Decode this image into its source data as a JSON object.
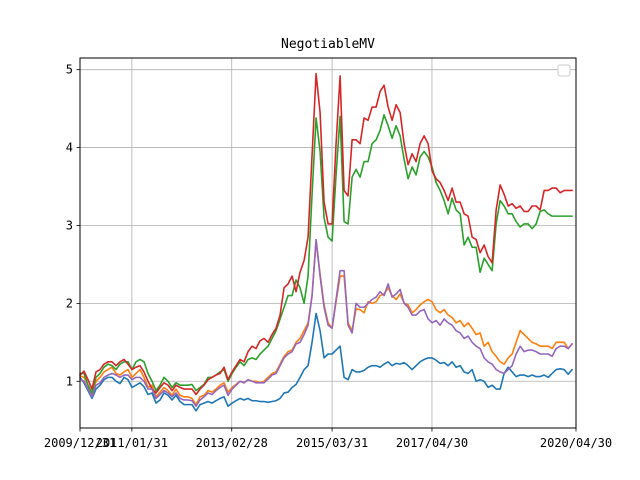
{
  "chart_data": {
    "type": "line",
    "title": "NegotiableMV",
    "xlabel": "",
    "ylabel": "",
    "x_tick_labels": [
      "2009/12/31",
      "2011/01/31",
      "2013/02/28",
      "2015/03/31",
      "2017/04/30",
      "2020/04/30"
    ],
    "x_tick_values": [
      2010.0,
      2011.08,
      2013.16,
      2015.25,
      2017.33,
      2020.33
    ],
    "xlim": [
      2010.0,
      2020.33
    ],
    "y_ticks": [
      1,
      2,
      3,
      4,
      5
    ],
    "ylim": [
      0.4,
      5.15
    ],
    "grid": true,
    "legend": {
      "placement": "top-right",
      "entries": []
    },
    "x": [
      2010.0,
      2010.083,
      2010.167,
      2010.25,
      2010.333,
      2010.417,
      2010.5,
      2010.583,
      2010.667,
      2010.75,
      2010.833,
      2010.917,
      2011.0,
      2011.083,
      2011.167,
      2011.25,
      2011.333,
      2011.417,
      2011.5,
      2011.583,
      2011.667,
      2011.75,
      2011.833,
      2011.917,
      2012.0,
      2012.083,
      2012.167,
      2012.25,
      2012.333,
      2012.417,
      2012.5,
      2012.583,
      2012.667,
      2012.75,
      2012.833,
      2012.917,
      2013.0,
      2013.083,
      2013.167,
      2013.25,
      2013.333,
      2013.417,
      2013.5,
      2013.583,
      2013.667,
      2013.75,
      2013.833,
      2013.917,
      2014.0,
      2014.083,
      2014.167,
      2014.25,
      2014.333,
      2014.417,
      2014.5,
      2014.583,
      2014.667,
      2014.75,
      2014.833,
      2014.917,
      2015.0,
      2015.083,
      2015.167,
      2015.25,
      2015.333,
      2015.417,
      2015.5,
      2015.583,
      2015.667,
      2015.75,
      2015.833,
      2015.917,
      2016.0,
      2016.083,
      2016.167,
      2016.25,
      2016.333,
      2016.417,
      2016.5,
      2016.583,
      2016.667,
      2016.75,
      2016.833,
      2016.917,
      2017.0,
      2017.083,
      2017.167,
      2017.25,
      2017.333,
      2017.417,
      2017.5,
      2017.583,
      2017.667,
      2017.75,
      2017.833,
      2017.917,
      2018.0,
      2018.083,
      2018.167,
      2018.25,
      2018.333,
      2018.417,
      2018.5,
      2018.583,
      2018.667,
      2018.75,
      2018.833,
      2018.917,
      2019.0,
      2019.083,
      2019.167,
      2019.25,
      2019.333,
      2019.417,
      2019.5,
      2019.583,
      2019.667,
      2019.75,
      2019.833,
      2019.917,
      2020.0,
      2020.083,
      2020.167,
      2020.25
    ],
    "series": [
      {
        "color": "#1f77b4",
        "values": [
          1.05,
          0.98,
          0.88,
          0.78,
          0.9,
          0.95,
          1.02,
          1.05,
          1.05,
          1.0,
          0.97,
          1.05,
          1.02,
          0.92,
          0.95,
          0.98,
          0.93,
          0.83,
          0.85,
          0.72,
          0.76,
          0.85,
          0.82,
          0.76,
          0.82,
          0.74,
          0.7,
          0.7,
          0.7,
          0.62,
          0.7,
          0.72,
          0.74,
          0.72,
          0.75,
          0.78,
          0.8,
          0.68,
          0.72,
          0.75,
          0.78,
          0.76,
          0.78,
          0.75,
          0.75,
          0.74,
          0.74,
          0.73,
          0.74,
          0.75,
          0.78,
          0.85,
          0.86,
          0.92,
          0.96,
          1.05,
          1.15,
          1.2,
          1.5,
          1.87,
          1.65,
          1.3,
          1.35,
          1.35,
          1.4,
          1.45,
          1.05,
          1.02,
          1.15,
          1.12,
          1.12,
          1.14,
          1.18,
          1.2,
          1.2,
          1.18,
          1.22,
          1.25,
          1.2,
          1.23,
          1.22,
          1.24,
          1.2,
          1.15,
          1.2,
          1.25,
          1.28,
          1.3,
          1.3,
          1.27,
          1.23,
          1.24,
          1.2,
          1.25,
          1.18,
          1.2,
          1.12,
          1.1,
          1.15,
          1.0,
          1.02,
          1.0,
          0.92,
          0.95,
          0.9,
          0.9,
          1.1,
          1.18,
          1.12,
          1.06,
          1.08,
          1.08,
          1.06,
          1.08,
          1.06,
          1.06,
          1.08,
          1.05,
          1.1,
          1.15,
          1.16,
          1.15,
          1.09,
          1.15
        ]
      },
      {
        "color": "#ff7f0e",
        "values": [
          1.07,
          1.05,
          0.95,
          0.82,
          1.0,
          1.05,
          1.12,
          1.15,
          1.18,
          1.1,
          1.08,
          1.12,
          1.15,
          1.05,
          1.1,
          1.15,
          1.05,
          0.92,
          0.95,
          0.8,
          0.86,
          0.92,
          0.88,
          0.82,
          0.9,
          0.82,
          0.8,
          0.8,
          0.78,
          0.7,
          0.8,
          0.82,
          0.88,
          0.86,
          0.9,
          0.95,
          0.98,
          0.86,
          0.92,
          0.96,
          1.0,
          0.98,
          1.02,
          1.0,
          1.0,
          0.98,
          1.0,
          1.05,
          1.1,
          1.12,
          1.22,
          1.32,
          1.38,
          1.4,
          1.5,
          1.55,
          1.65,
          1.75,
          2.1,
          2.8,
          2.38,
          1.98,
          1.75,
          1.68,
          2.02,
          2.35,
          2.35,
          1.75,
          1.65,
          1.93,
          1.92,
          1.88,
          2.02,
          2.0,
          2.02,
          2.1,
          2.12,
          2.2,
          2.1,
          2.05,
          2.12,
          2.0,
          1.98,
          1.88,
          1.92,
          1.98,
          2.02,
          2.05,
          2.02,
          1.92,
          1.88,
          1.92,
          1.85,
          1.82,
          1.75,
          1.78,
          1.7,
          1.75,
          1.68,
          1.6,
          1.62,
          1.45,
          1.5,
          1.38,
          1.32,
          1.25,
          1.22,
          1.3,
          1.35,
          1.5,
          1.65,
          1.6,
          1.55,
          1.5,
          1.48,
          1.45,
          1.45,
          1.45,
          1.42,
          1.5,
          1.5,
          1.5,
          1.42,
          1.48
        ]
      },
      {
        "color": "#2ca02c",
        "values": [
          1.1,
          1.1,
          0.95,
          0.85,
          1.05,
          1.1,
          1.18,
          1.22,
          1.2,
          1.15,
          1.22,
          1.25,
          1.25,
          1.15,
          1.25,
          1.28,
          1.25,
          1.1,
          1.0,
          0.88,
          0.95,
          1.05,
          1.0,
          0.92,
          0.98,
          0.95,
          0.95,
          0.95,
          0.96,
          0.88,
          0.92,
          0.96,
          1.05,
          1.05,
          1.08,
          1.12,
          1.15,
          1.0,
          1.1,
          1.18,
          1.25,
          1.2,
          1.28,
          1.3,
          1.28,
          1.35,
          1.4,
          1.45,
          1.55,
          1.65,
          1.8,
          1.95,
          2.1,
          2.1,
          2.3,
          2.2,
          2.0,
          2.35,
          3.4,
          4.38,
          3.95,
          3.1,
          2.85,
          2.8,
          3.65,
          4.4,
          3.05,
          3.02,
          3.62,
          3.72,
          3.62,
          3.82,
          3.82,
          4.05,
          4.1,
          4.22,
          4.42,
          4.28,
          4.12,
          4.28,
          4.15,
          3.85,
          3.6,
          3.75,
          3.65,
          3.88,
          3.95,
          3.88,
          3.75,
          3.55,
          3.45,
          3.32,
          3.15,
          3.35,
          3.2,
          3.15,
          2.75,
          2.85,
          2.72,
          2.72,
          2.4,
          2.58,
          2.5,
          2.42,
          3.02,
          3.32,
          3.25,
          3.15,
          3.15,
          3.05,
          2.98,
          3.02,
          3.02,
          2.96,
          3.02,
          3.18,
          3.2,
          3.15,
          3.12,
          3.12,
          3.12,
          3.12,
          3.12,
          3.12
        ]
      },
      {
        "color": "#d62728",
        "values": [
          1.08,
          1.13,
          1.02,
          0.9,
          1.12,
          1.15,
          1.22,
          1.25,
          1.25,
          1.2,
          1.25,
          1.28,
          1.22,
          1.15,
          1.18,
          1.2,
          1.12,
          1.0,
          0.9,
          0.85,
          0.92,
          0.98,
          0.95,
          0.88,
          0.95,
          0.92,
          0.9,
          0.9,
          0.9,
          0.83,
          0.9,
          0.95,
          1.02,
          1.05,
          1.08,
          1.1,
          1.18,
          1.02,
          1.12,
          1.2,
          1.28,
          1.25,
          1.38,
          1.45,
          1.42,
          1.52,
          1.55,
          1.5,
          1.6,
          1.68,
          1.85,
          2.2,
          2.25,
          2.35,
          2.15,
          2.4,
          2.55,
          2.85,
          3.9,
          4.95,
          4.45,
          3.3,
          3.02,
          3.02,
          4.05,
          4.92,
          3.45,
          3.38,
          4.1,
          4.1,
          4.05,
          4.38,
          4.35,
          4.52,
          4.52,
          4.72,
          4.8,
          4.52,
          4.35,
          4.55,
          4.45,
          4.05,
          3.78,
          3.92,
          3.82,
          4.05,
          4.15,
          4.05,
          3.7,
          3.6,
          3.55,
          3.45,
          3.32,
          3.48,
          3.3,
          3.3,
          3.15,
          3.12,
          2.85,
          2.82,
          2.65,
          2.75,
          2.6,
          2.52,
          3.2,
          3.52,
          3.4,
          3.25,
          3.28,
          3.22,
          3.25,
          3.18,
          3.18,
          3.25,
          3.25,
          3.2,
          3.45,
          3.45,
          3.48,
          3.48,
          3.42,
          3.45,
          3.45,
          3.45
        ]
      },
      {
        "color": "#9467bd",
        "values": [
          1.03,
          1.0,
          0.9,
          0.8,
          0.95,
          0.98,
          1.05,
          1.08,
          1.1,
          1.08,
          1.05,
          1.08,
          1.08,
          1.02,
          1.05,
          1.05,
          1.0,
          0.9,
          0.9,
          0.78,
          0.83,
          0.88,
          0.85,
          0.8,
          0.85,
          0.78,
          0.76,
          0.76,
          0.75,
          0.68,
          0.76,
          0.8,
          0.85,
          0.83,
          0.88,
          0.92,
          0.95,
          0.82,
          0.9,
          0.95,
          1.0,
          0.98,
          1.02,
          1.0,
          0.98,
          0.98,
          0.98,
          1.03,
          1.08,
          1.1,
          1.2,
          1.3,
          1.35,
          1.38,
          1.48,
          1.5,
          1.6,
          1.72,
          2.1,
          2.82,
          2.35,
          1.95,
          1.72,
          1.68,
          2.05,
          2.42,
          2.42,
          1.72,
          1.62,
          2.0,
          1.95,
          1.95,
          2.0,
          2.05,
          2.08,
          2.15,
          2.1,
          2.25,
          2.08,
          2.12,
          2.18,
          2.0,
          1.95,
          1.85,
          1.85,
          1.9,
          1.92,
          1.8,
          1.75,
          1.78,
          1.72,
          1.8,
          1.75,
          1.72,
          1.65,
          1.62,
          1.55,
          1.58,
          1.5,
          1.45,
          1.42,
          1.3,
          1.25,
          1.22,
          1.15,
          1.12,
          1.1,
          1.15,
          1.2,
          1.35,
          1.45,
          1.38,
          1.4,
          1.4,
          1.38,
          1.35,
          1.35,
          1.35,
          1.32,
          1.42,
          1.45,
          1.45,
          1.42,
          1.48
        ]
      }
    ]
  }
}
